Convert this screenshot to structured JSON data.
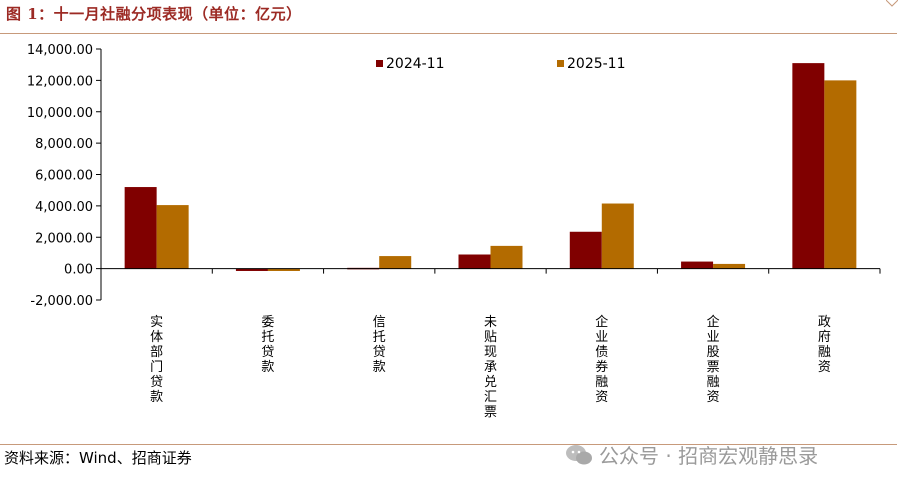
{
  "header": {
    "title": "图 1：十一月社融分项表现（单位：亿元）"
  },
  "footer": {
    "source": "资料来源：Wind、招商证券",
    "watermark": "公众号 · 招商宏观静思录"
  },
  "colors": {
    "series_2024": "#800000",
    "series_2025": "#b36b00",
    "title": "#9c2a24",
    "rule": "#c79a7b"
  },
  "chart_data": {
    "type": "bar",
    "categories": [
      "实体部门贷款",
      "委托贷款",
      "信托贷款",
      "未贴现承兑汇票",
      "企业债券融资",
      "企业股票融资",
      "政府融资"
    ],
    "series": [
      {
        "name": "2024-11",
        "values": [
          5200,
          -150,
          50,
          900,
          2350,
          450,
          13100
        ]
      },
      {
        "name": "2025-11",
        "values": [
          4050,
          -150,
          800,
          1450,
          4150,
          300,
          12000
        ]
      }
    ],
    "yticks": [
      "14,000.00",
      "12,000.00",
      "10,000.00",
      "8,000.00",
      "6,000.00",
      "4,000.00",
      "2,000.00",
      "0.00",
      "-2,000.00"
    ],
    "ylim": [
      -2000,
      14000
    ],
    "legend_position": "top-center"
  }
}
